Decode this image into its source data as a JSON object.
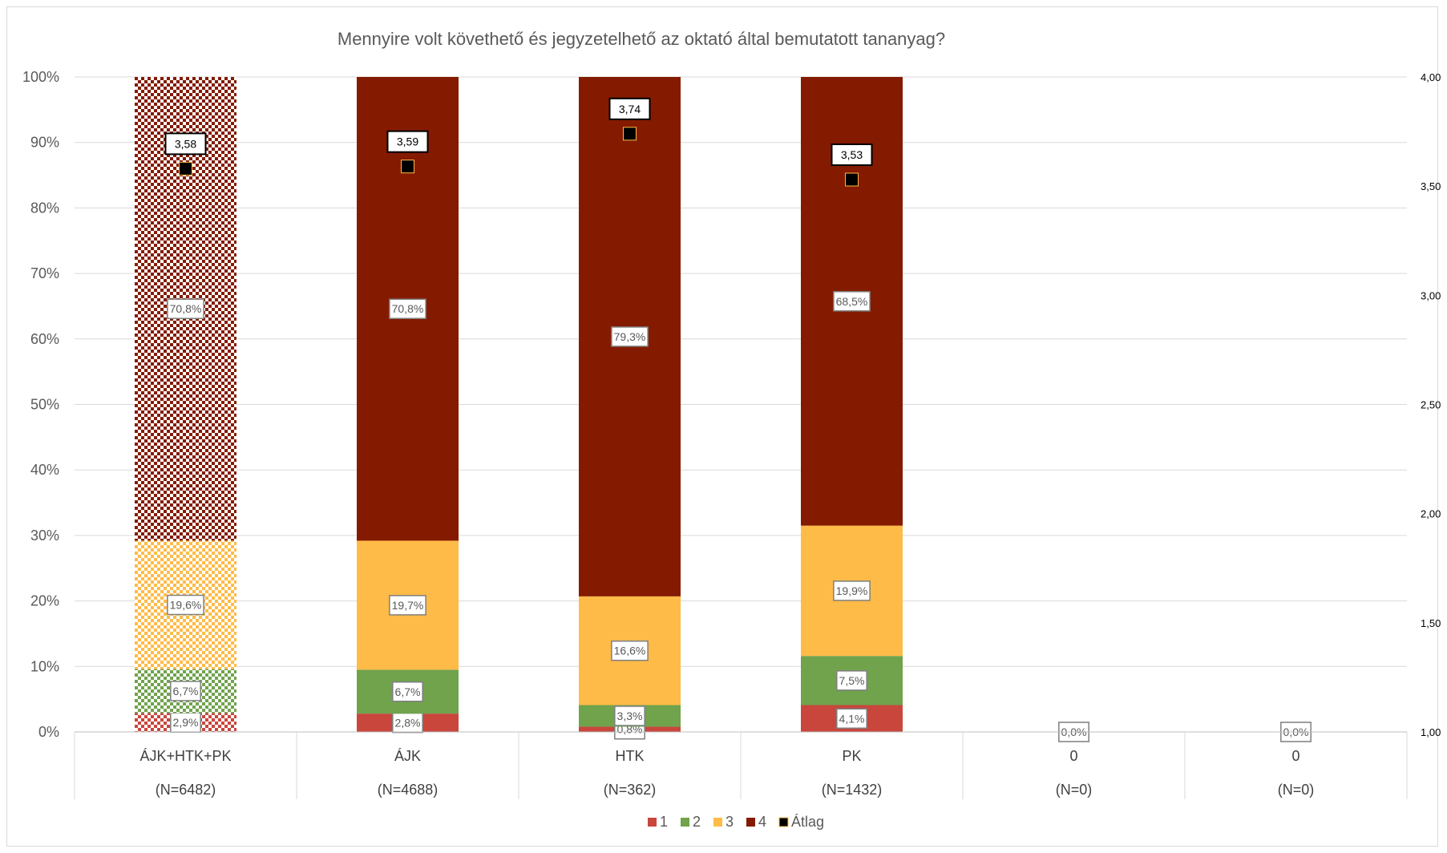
{
  "chart_data": {
    "type": "bar",
    "stacked": true,
    "title": "Mennyire volt követhető és jegyzetelhető az oktató által bemutatott tananyag?",
    "categories": [
      "ÁJK+HTK+PK",
      "ÁJK",
      "HTK",
      "PK",
      "0",
      "0"
    ],
    "category_n": [
      "(N=6482)",
      "(N=4688)",
      "(N=362)",
      "(N=1432)",
      "(N=0)",
      "(N=0)"
    ],
    "y_ticks": [
      "0%",
      "10%",
      "20%",
      "30%",
      "40%",
      "50%",
      "60%",
      "70%",
      "80%",
      "90%",
      "100%"
    ],
    "y2_ticks": [
      "1,00",
      "1,50",
      "2,00",
      "2,50",
      "3,00",
      "3,50",
      "4,00"
    ],
    "ylim": [
      0,
      100
    ],
    "y2lim": [
      1.0,
      4.0
    ],
    "grid": true,
    "legend_position": "bottom",
    "series": [
      {
        "name": "1",
        "color": "#c9463d",
        "values": [
          2.9,
          2.8,
          0.8,
          4.1,
          0,
          0
        ],
        "labels": [
          "2,9%",
          "2,8%",
          "0,8%",
          "4,1%",
          "",
          ""
        ]
      },
      {
        "name": "2",
        "color": "#70a34c",
        "values": [
          6.7,
          6.7,
          3.3,
          7.5,
          0,
          0
        ],
        "labels": [
          "6,7%",
          "6,7%",
          "3,3%",
          "7,5%",
          "",
          ""
        ]
      },
      {
        "name": "3",
        "color": "#ffbb47",
        "values": [
          19.6,
          19.7,
          16.6,
          19.9,
          0,
          0
        ],
        "labels": [
          "19,6%",
          "19,7%",
          "16,6%",
          "19,9%",
          "",
          ""
        ]
      },
      {
        "name": "4",
        "color": "#841b00",
        "values": [
          70.8,
          70.8,
          79.3,
          68.5,
          0,
          0
        ],
        "labels": [
          "70,8%",
          "70,8%",
          "79,3%",
          "68,5%",
          "0,0%",
          "0,0%"
        ]
      }
    ],
    "average": {
      "name": "Átlag",
      "values": [
        3.58,
        3.59,
        3.74,
        3.53,
        null,
        null
      ],
      "labels": [
        "3,58",
        "3,59",
        "3,74",
        "3,53",
        "",
        ""
      ]
    },
    "patterned_categories": [
      0
    ]
  }
}
